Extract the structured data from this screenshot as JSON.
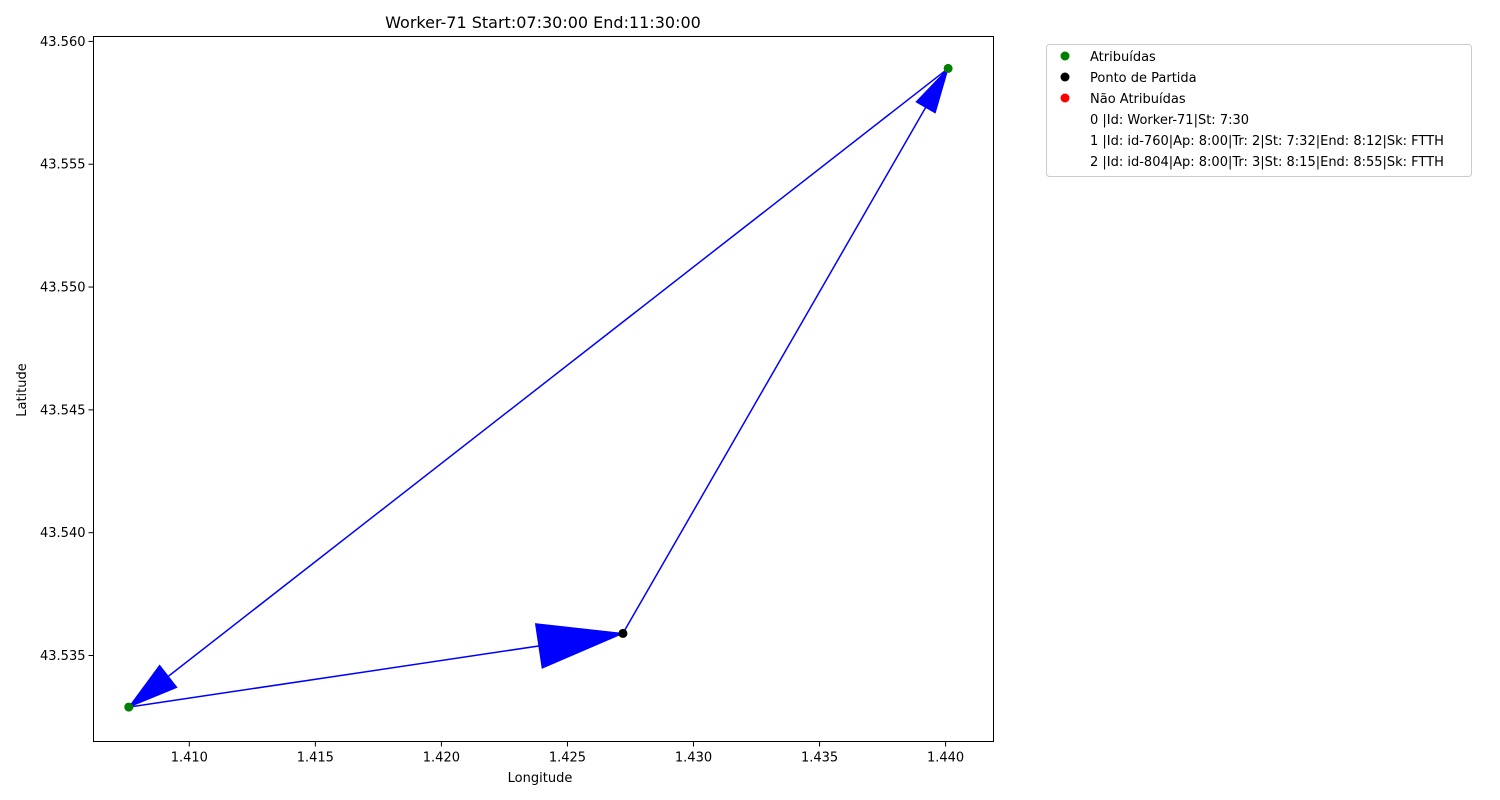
{
  "chart_data": {
    "type": "scatter",
    "title": "Worker-71 Start:07:30:00 End:11:30:00",
    "xlabel": "Longitude",
    "ylabel": "Latitude",
    "xlim": [
      1.4062,
      1.4419
    ],
    "ylim": [
      43.5315,
      43.5602
    ],
    "xticks": [
      "1.410",
      "1.415",
      "1.420",
      "1.425",
      "1.430",
      "1.435",
      "1.440"
    ],
    "yticks": [
      "43.535",
      "43.540",
      "43.545",
      "43.550",
      "43.555",
      "43.560"
    ],
    "grid": false,
    "legend_position": "outside-top-right",
    "series": [
      {
        "name": "Atribuídas",
        "color": "#008000",
        "x": [
          1.4076,
          1.4401
        ],
        "y": [
          43.5329,
          43.5589
        ]
      },
      {
        "name": "Ponto de Partida",
        "color": "#000000",
        "x": [
          1.4272
        ],
        "y": [
          43.5359
        ]
      },
      {
        "name": "Não Atribuídas",
        "color": "#ff0000",
        "x": [],
        "y": []
      }
    ],
    "route": {
      "color": "#0000ff",
      "x": [
        1.4272,
        1.4401,
        1.4076,
        1.4272
      ],
      "y": [
        43.5359,
        43.5589,
        43.5329,
        43.5359
      ]
    },
    "legend_entries": [
      "0 |Id: Worker-71|St: 7:30",
      "1 |Id: id-760|Ap: 8:00|Tr: 2|St: 7:32|End: 8:12|Sk: FTTH",
      "2 |Id: id-804|Ap: 8:00|Tr: 3|St: 8:15|End: 8:55|Sk: FTTH"
    ]
  }
}
